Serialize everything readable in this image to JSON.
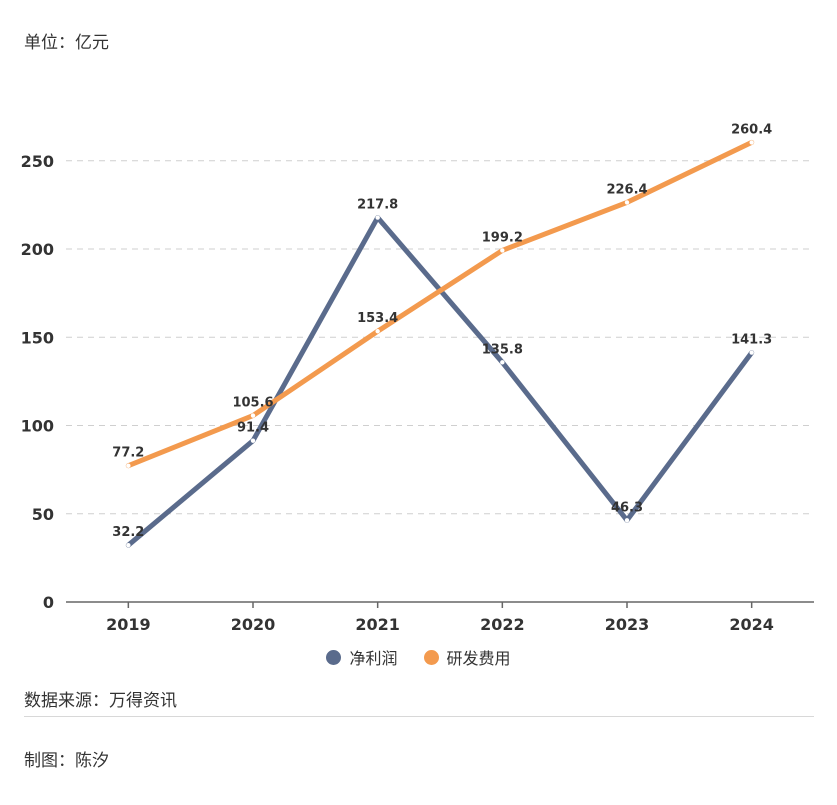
{
  "unit_label": "单位：亿元",
  "source_text": "数据来源：万得资讯",
  "author_text": "制图：陈汐",
  "colors": {
    "net_profit": "#5a6b8c",
    "rd_expense": "#f39a4e",
    "grid": "#cfcfcf",
    "axis": "#666666"
  },
  "chart_data": {
    "type": "line",
    "x": [
      "2019",
      "2020",
      "2021",
      "2022",
      "2023",
      "2024"
    ],
    "ylim": [
      0,
      260
    ],
    "yticks": [
      0,
      50,
      100,
      150,
      200,
      250
    ],
    "grid": true,
    "legend_position": "bottom-center",
    "series": [
      {
        "name": "净利润",
        "values": [
          32.2,
          91.4,
          217.8,
          135.8,
          46.3,
          141.3
        ]
      },
      {
        "name": "研发费用",
        "values": [
          77.2,
          105.6,
          153.4,
          199.2,
          226.4,
          260.4
        ]
      }
    ]
  }
}
